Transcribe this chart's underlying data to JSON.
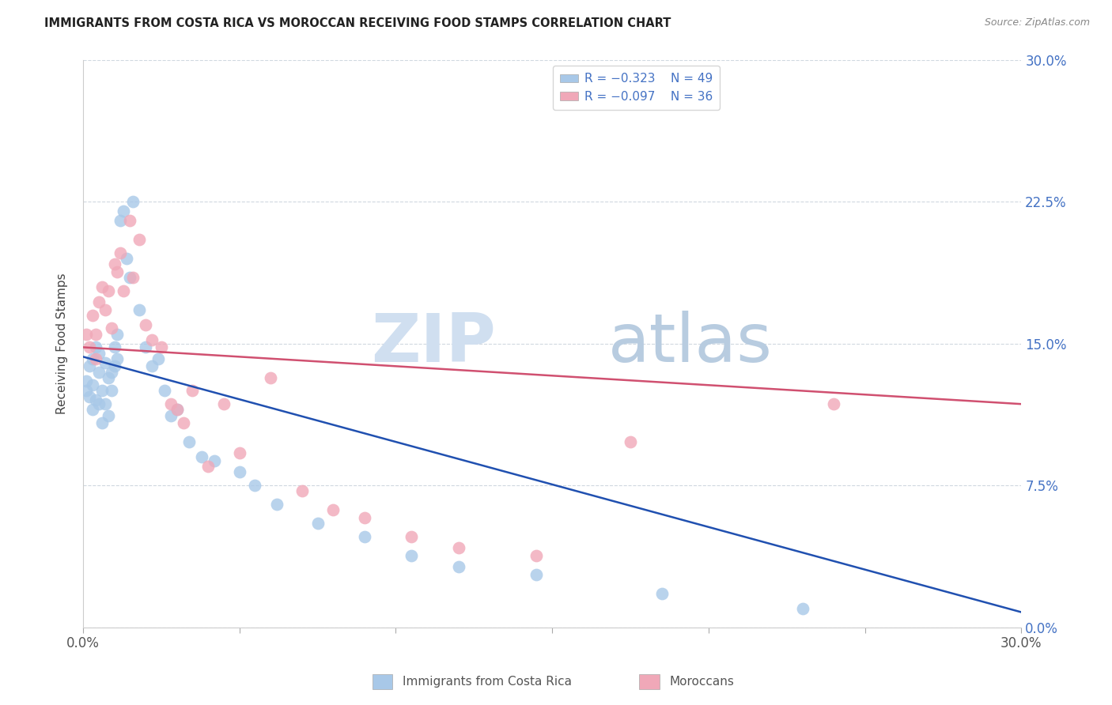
{
  "title": "IMMIGRANTS FROM COSTA RICA VS MOROCCAN RECEIVING FOOD STAMPS CORRELATION CHART",
  "source": "Source: ZipAtlas.com",
  "ylabel": "Receiving Food Stamps",
  "ytick_positions": [
    0.0,
    0.075,
    0.15,
    0.225,
    0.3
  ],
  "xtick_positions": [
    0.0,
    0.05,
    0.1,
    0.15,
    0.2,
    0.25,
    0.3
  ],
  "xlim": [
    0.0,
    0.3
  ],
  "ylim": [
    0.0,
    0.3
  ],
  "legend_r1": "R = -0.323",
  "legend_n1": "N = 49",
  "legend_r2": "R = -0.097",
  "legend_n2": "N = 36",
  "blue_color": "#a8c8e8",
  "pink_color": "#f0a8b8",
  "line_blue": "#2050b0",
  "line_pink": "#d05070",
  "costa_rica_x": [
    0.001,
    0.001,
    0.002,
    0.002,
    0.003,
    0.003,
    0.003,
    0.004,
    0.004,
    0.005,
    0.005,
    0.005,
    0.006,
    0.006,
    0.007,
    0.007,
    0.008,
    0.008,
    0.009,
    0.009,
    0.01,
    0.01,
    0.011,
    0.011,
    0.012,
    0.013,
    0.014,
    0.015,
    0.016,
    0.018,
    0.02,
    0.022,
    0.024,
    0.026,
    0.028,
    0.03,
    0.034,
    0.038,
    0.042,
    0.05,
    0.055,
    0.062,
    0.075,
    0.09,
    0.105,
    0.12,
    0.145,
    0.185,
    0.23
  ],
  "costa_rica_y": [
    0.13,
    0.125,
    0.138,
    0.122,
    0.142,
    0.128,
    0.115,
    0.148,
    0.12,
    0.145,
    0.135,
    0.118,
    0.125,
    0.108,
    0.14,
    0.118,
    0.132,
    0.112,
    0.135,
    0.125,
    0.148,
    0.138,
    0.155,
    0.142,
    0.215,
    0.22,
    0.195,
    0.185,
    0.225,
    0.168,
    0.148,
    0.138,
    0.142,
    0.125,
    0.112,
    0.115,
    0.098,
    0.09,
    0.088,
    0.082,
    0.075,
    0.065,
    0.055,
    0.048,
    0.038,
    0.032,
    0.028,
    0.018,
    0.01
  ],
  "moroccan_x": [
    0.001,
    0.002,
    0.003,
    0.004,
    0.004,
    0.005,
    0.006,
    0.007,
    0.008,
    0.009,
    0.01,
    0.011,
    0.012,
    0.013,
    0.015,
    0.016,
    0.018,
    0.02,
    0.022,
    0.025,
    0.028,
    0.03,
    0.032,
    0.035,
    0.04,
    0.045,
    0.05,
    0.06,
    0.07,
    0.08,
    0.09,
    0.105,
    0.12,
    0.145,
    0.175,
    0.24
  ],
  "moroccan_y": [
    0.155,
    0.148,
    0.165,
    0.155,
    0.142,
    0.172,
    0.18,
    0.168,
    0.178,
    0.158,
    0.192,
    0.188,
    0.198,
    0.178,
    0.215,
    0.185,
    0.205,
    0.16,
    0.152,
    0.148,
    0.118,
    0.115,
    0.108,
    0.125,
    0.085,
    0.118,
    0.092,
    0.132,
    0.072,
    0.062,
    0.058,
    0.048,
    0.042,
    0.038,
    0.098,
    0.118
  ],
  "blue_trend_x": [
    0.0,
    0.3
  ],
  "blue_trend_y": [
    0.143,
    0.008
  ],
  "pink_trend_x": [
    0.0,
    0.3
  ],
  "pink_trend_y": [
    0.148,
    0.118
  ],
  "right_ytick_color": "#4472c4",
  "tick_label_color": "#555555",
  "grid_color": "#d0d8e0",
  "spine_color": "#cccccc"
}
